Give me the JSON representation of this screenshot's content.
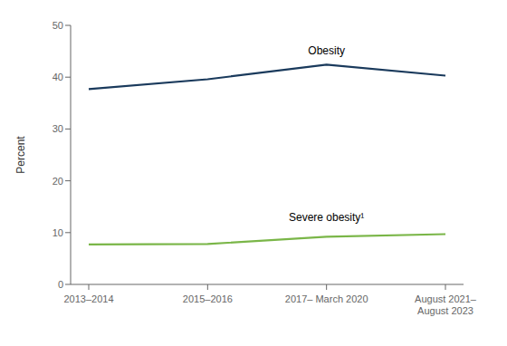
{
  "chart_data": {
    "type": "line",
    "categories": [
      "2013–2014",
      "2015–2016",
      "2017– March 2020",
      "August 2021–\nAugust 2023"
    ],
    "series": [
      {
        "color": "#1a3a5c",
        "values": [
          37.7,
          39.6,
          42.4,
          40.3
        ]
      },
      {
        "color": "#7ab648",
        "values": [
          7.7,
          7.8,
          9.2,
          9.7
        ]
      }
    ],
    "y_label": "Percent",
    "ylim": [
      0,
      50
    ],
    "yticks": [
      0,
      10,
      20,
      30,
      40,
      50
    ],
    "grid": false,
    "annotations": [
      {
        "text": "Obesity",
        "x": "2017– March 2020",
        "y": 43.5
      },
      {
        "text": "Severe obesity¹",
        "x": "2017– March 2020",
        "y": 11.3
      }
    ]
  }
}
